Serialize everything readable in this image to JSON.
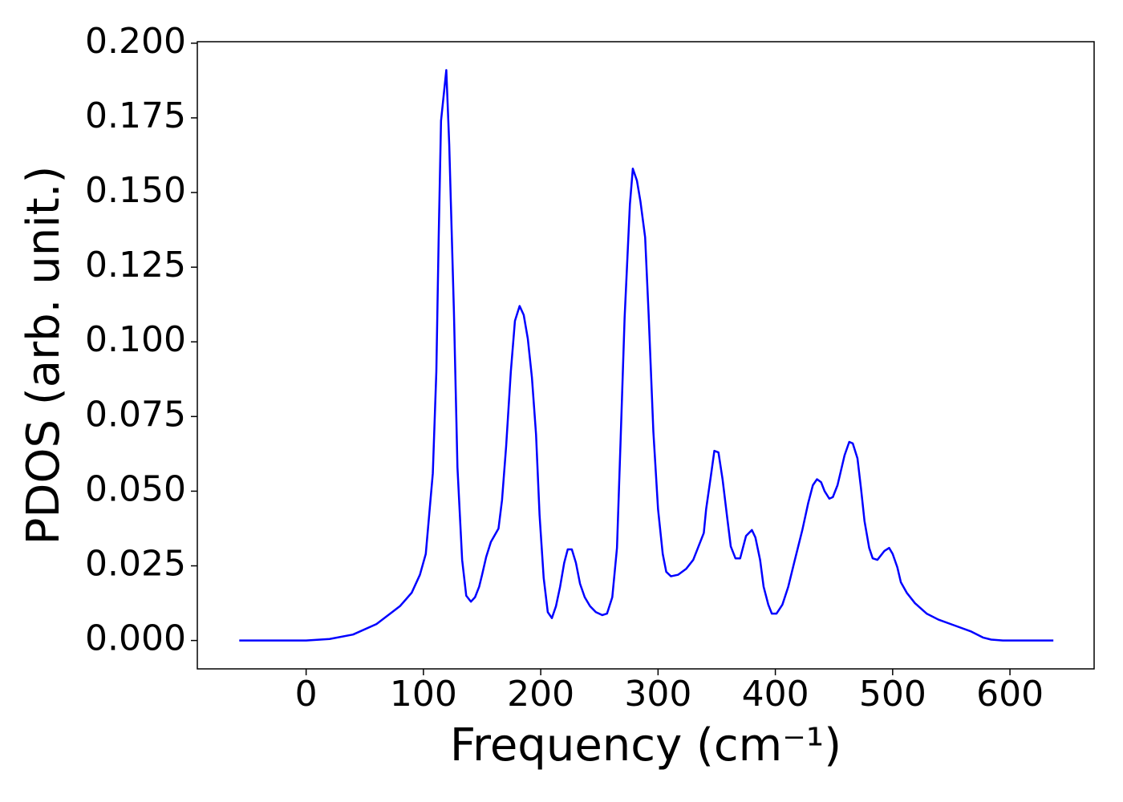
{
  "chart_data": {
    "type": "line",
    "x_label": "Frequency (cm⁻¹)",
    "y_label": "PDOS (arb. unit.)",
    "x": [
      -57,
      0,
      20,
      40,
      60,
      80,
      90,
      97,
      102,
      104,
      108,
      111,
      113,
      115,
      119.5,
      122,
      126,
      129,
      133,
      136.5,
      140.5,
      144,
      147.5,
      150,
      153.5,
      157.5,
      164,
      167,
      170.5,
      174.5,
      178,
      182,
      185.5,
      189,
      192.5,
      196,
      199,
      202.5,
      206,
      209.5,
      213,
      216.5,
      220,
      223,
      226.5,
      230,
      233.5,
      237.5,
      242,
      247,
      252.5,
      256.5,
      261,
      265,
      268,
      271.5,
      276,
      278.5,
      282,
      285,
      289,
      292,
      296,
      300,
      304,
      307,
      311,
      317,
      324,
      330,
      334,
      339,
      341,
      345,
      348,
      351.5,
      355,
      359,
      362,
      366,
      370,
      375,
      380,
      383,
      387,
      390,
      394,
      397,
      401,
      406,
      411,
      416,
      423,
      428,
      432,
      435.5,
      439,
      442,
      446,
      449,
      453,
      456,
      459,
      463,
      466,
      470,
      473,
      476,
      480,
      483,
      487,
      493,
      497,
      500,
      504,
      507,
      512,
      519,
      529,
      539,
      553,
      567,
      577,
      584,
      594,
      637
    ],
    "series": [
      {
        "name": "PDOS",
        "color": "#0000ff",
        "values": [
          0,
          0,
          0.0005,
          0.002,
          0.0055,
          0.0115,
          0.016,
          0.022,
          0.029,
          0.038,
          0.056,
          0.09,
          0.135,
          0.174,
          0.191,
          0.166,
          0.11,
          0.058,
          0.027,
          0.015,
          0.013,
          0.0145,
          0.018,
          0.022,
          0.028,
          0.033,
          0.0375,
          0.047,
          0.065,
          0.09,
          0.107,
          0.112,
          0.109,
          0.101,
          0.088,
          0.069,
          0.042,
          0.021,
          0.0095,
          0.0075,
          0.0115,
          0.018,
          0.026,
          0.0305,
          0.0305,
          0.026,
          0.019,
          0.0145,
          0.0115,
          0.0095,
          0.0085,
          0.009,
          0.0145,
          0.031,
          0.066,
          0.108,
          0.146,
          0.158,
          0.154,
          0.147,
          0.135,
          0.109,
          0.07,
          0.044,
          0.029,
          0.023,
          0.0215,
          0.022,
          0.024,
          0.027,
          0.031,
          0.036,
          0.044,
          0.055,
          0.0635,
          0.063,
          0.054,
          0.041,
          0.0315,
          0.0275,
          0.0275,
          0.035,
          0.037,
          0.0345,
          0.027,
          0.018,
          0.012,
          0.009,
          0.009,
          0.012,
          0.018,
          0.026,
          0.037,
          0.046,
          0.052,
          0.054,
          0.053,
          0.05,
          0.0475,
          0.048,
          0.052,
          0.057,
          0.062,
          0.0665,
          0.066,
          0.061,
          0.051,
          0.04,
          0.031,
          0.0275,
          0.027,
          0.03,
          0.031,
          0.029,
          0.0245,
          0.0195,
          0.016,
          0.0125,
          0.009,
          0.007,
          0.005,
          0.003,
          0.001,
          0.0003,
          0,
          0
        ]
      }
    ],
    "xlim": [
      -92.75,
      671.75
    ],
    "ylim": [
      -0.0095,
      0.2005
    ],
    "xticks": [
      0,
      100,
      200,
      300,
      400,
      500,
      600
    ],
    "yticks": [
      {
        "value": 0,
        "label": "0.000"
      },
      {
        "value": 0.025,
        "label": "0.025"
      },
      {
        "value": 0.05,
        "label": "0.050"
      },
      {
        "value": 0.075,
        "label": "0.075"
      },
      {
        "value": 0.1,
        "label": "0.100"
      },
      {
        "value": 0.125,
        "label": "0.125"
      },
      {
        "value": 0.15,
        "label": "0.150"
      },
      {
        "value": 0.175,
        "label": "0.175"
      },
      {
        "value": 0.2,
        "label": "0.200"
      }
    ],
    "grid": false
  }
}
